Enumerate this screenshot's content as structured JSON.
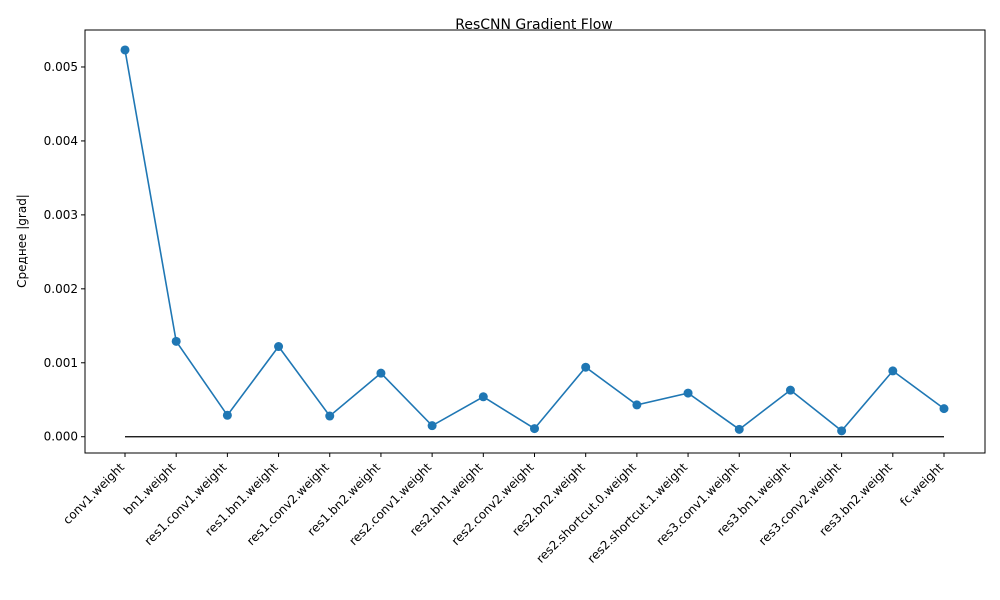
{
  "chart_data": {
    "type": "line",
    "title": "ResCNN Gradient Flow",
    "xlabel": "",
    "ylabel": "Среднее |grad|",
    "categories": [
      "conv1.weight",
      "bn1.weight",
      "res1.conv1.weight",
      "res1.bn1.weight",
      "res1.conv2.weight",
      "res1.bn2.weight",
      "res2.conv1.weight",
      "res2.bn1.weight",
      "res2.conv2.weight",
      "res2.bn2.weight",
      "res2.shortcut.0.weight",
      "res2.shortcut.1.weight",
      "res3.conv1.weight",
      "res3.bn1.weight",
      "res3.conv2.weight",
      "res3.bn2.weight",
      "fc.weight"
    ],
    "series": [
      {
        "values": [
          0.00523,
          0.00129,
          0.00029,
          0.00122,
          0.00028,
          0.00086,
          0.00015,
          0.00054,
          0.00011,
          0.00094,
          0.00043,
          0.00059,
          0.0001,
          0.00063,
          8e-05,
          0.00089,
          0.00038
        ],
        "color": "#1f77b4",
        "marker": "circle"
      }
    ],
    "reference_line": {
      "y": 0,
      "color": "#000000"
    },
    "ylim": [
      -0.00022,
      0.0055
    ],
    "yticks": [
      0.0,
      0.001,
      0.002,
      0.003,
      0.004,
      0.005
    ],
    "ytick_labels": [
      "0.000",
      "0.001",
      "0.002",
      "0.003",
      "0.004",
      "0.005"
    ],
    "grid": false,
    "legend": "none"
  }
}
